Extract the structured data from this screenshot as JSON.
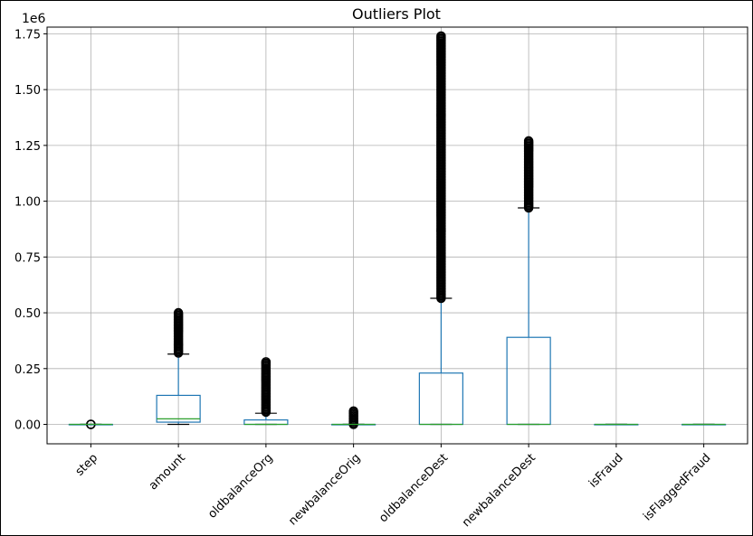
{
  "chart_data": {
    "type": "box",
    "title": "Outliers Plot",
    "offset_label": "1e6",
    "categories": [
      "step",
      "amount",
      "oldbalanceOrg",
      "newbalanceOrig",
      "oldbalanceDest",
      "newbalanceDest",
      "isFraud",
      "isFlaggedFraud"
    ],
    "ylim": [
      -0.087,
      1.78
    ],
    "yticks": [
      0.0,
      0.25,
      0.5,
      0.75,
      1.0,
      1.25,
      1.5,
      1.75
    ],
    "ytick_labels": [
      "0.00",
      "0.25",
      "0.50",
      "0.75",
      "1.00",
      "1.25",
      "1.50",
      "1.75"
    ],
    "grid": true,
    "boxes": [
      {
        "q1": 0.0,
        "median": 0.0,
        "q3": 0.0,
        "whisker_low": 0.0,
        "whisker_high": 0.0,
        "outliers_low": 0.0,
        "outliers_high": 0.0
      },
      {
        "q1": 0.01,
        "median": 0.025,
        "q3": 0.13,
        "whisker_low": 0.0,
        "whisker_high": 0.315,
        "outliers_low": 0.32,
        "outliers_high": 0.5
      },
      {
        "q1": 0.0,
        "median": 0.0,
        "q3": 0.02,
        "whisker_low": 0.0,
        "whisker_high": 0.05,
        "outliers_low": 0.055,
        "outliers_high": 0.28
      },
      {
        "q1": 0.0,
        "median": 0.0,
        "q3": 0.0,
        "whisker_low": 0.0,
        "whisker_high": 0.0,
        "outliers_low": 0.0,
        "outliers_high": 0.06
      },
      {
        "q1": 0.0,
        "median": 0.0,
        "q3": 0.23,
        "whisker_low": 0.0,
        "whisker_high": 0.565,
        "outliers_low": 0.565,
        "outliers_high": 1.74
      },
      {
        "q1": 0.0,
        "median": 0.0,
        "q3": 0.39,
        "whisker_low": 0.0,
        "whisker_high": 0.97,
        "outliers_low": 0.97,
        "outliers_high": 1.27
      },
      {
        "q1": 0.0,
        "median": 0.0,
        "q3": 0.0,
        "whisker_low": 0.0,
        "whisker_high": 0.0,
        "outliers_low": null,
        "outliers_high": null
      },
      {
        "q1": 0.0,
        "median": 0.0,
        "q3": 0.0,
        "whisker_low": 0.0,
        "whisker_high": 0.0,
        "outliers_low": null,
        "outliers_high": null
      }
    ],
    "colors": {
      "box": "#1f77b4",
      "median": "#2ca02c",
      "outlier": "#000000",
      "grid": "#b0b0b0"
    }
  }
}
